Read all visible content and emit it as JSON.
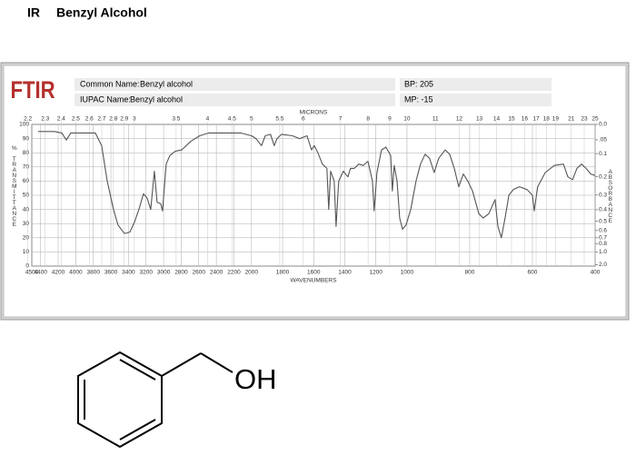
{
  "header": {
    "section": "IR",
    "compound": "Benzyl Alcohol"
  },
  "panel": {
    "logo": "FTIR",
    "common_name_label": "Common Name:",
    "common_name": "Benzyl alcohol",
    "iupac_label": "IUPAC Name:",
    "iupac_name": "Benzyl alcohol",
    "bp": "BP: 205",
    "mp": "MP: -15"
  },
  "structure": {
    "label": "OH"
  },
  "chart_data": {
    "type": "line",
    "x_label": "WAVENUMBERS",
    "x2_label": "MICRONS",
    "y_label": "% TRANSMITTANCE",
    "y2_label": "ABSORBANCE",
    "x": [
      4428,
      4242,
      4159,
      4107,
      4056,
      3880,
      3777,
      3705,
      3642,
      3570,
      3519,
      3446,
      3384,
      3332,
      3281,
      3229,
      3188,
      3147,
      3105,
      3074,
      3033,
      3012,
      2971,
      2930,
      2868,
      2795,
      2692,
      2589,
      2486,
      2330,
      2124,
      2000,
      1971,
      1936,
      1912,
      1877,
      1854,
      1836,
      1807,
      1737,
      1690,
      1643,
      1614,
      1596,
      1573,
      1544,
      1515,
      1503,
      1491,
      1468,
      1456,
      1439,
      1409,
      1380,
      1363,
      1339,
      1310,
      1281,
      1251,
      1222,
      1211,
      1193,
      1164,
      1135,
      1105,
      1094,
      1082,
      1064,
      1047,
      1029,
      1006,
      988,
      971,
      957,
      942,
      928,
      913,
      899,
      878,
      864,
      849,
      835,
      820,
      806,
      791,
      771,
      757,
      739,
      719,
      710,
      699,
      687,
      675,
      661,
      641,
      617,
      600,
      594,
      583,
      559,
      530,
      501,
      487,
      472,
      458,
      443,
      429,
      414,
      400
    ],
    "values": [
      95,
      95,
      94,
      89,
      94,
      94,
      94,
      85,
      60,
      40,
      29,
      23,
      24,
      31,
      40,
      51,
      48,
      40,
      67,
      45,
      44,
      39,
      72,
      78,
      81,
      82,
      88,
      92,
      94,
      94,
      94,
      92,
      90,
      85,
      92,
      93,
      85,
      90,
      93,
      92,
      90,
      92,
      82,
      85,
      80,
      72,
      69,
      40,
      67,
      60,
      28,
      60,
      67,
      63,
      69,
      69,
      72,
      71,
      74,
      60,
      39,
      66,
      82,
      84,
      78,
      53,
      71,
      60,
      34,
      26,
      29,
      40,
      60,
      72,
      79,
      76,
      66,
      76,
      82,
      79,
      69,
      56,
      65,
      60,
      53,
      37,
      34,
      37,
      47,
      28,
      20,
      34,
      50,
      54,
      56,
      54,
      50,
      39,
      56,
      66,
      71,
      72,
      63,
      61,
      69,
      72,
      69,
      65,
      64
    ],
    "color": "#555555",
    "xlim": [
      4500,
      400
    ],
    "xticks": [
      4500,
      4400,
      4200,
      4000,
      3800,
      3600,
      3400,
      3200,
      3000,
      2800,
      2600,
      2400,
      2200,
      2000,
      1800,
      1600,
      1400,
      1200,
      1000,
      800,
      600,
      400
    ],
    "xscale_breaks": [
      2000,
      1000
    ],
    "x2ticks": [
      2.2,
      2.3,
      2.4,
      2.5,
      2.6,
      2.7,
      2.8,
      2.9,
      3,
      3.5,
      4,
      4.5,
      5,
      5.5,
      6,
      7,
      8,
      9,
      10,
      11,
      12,
      13,
      14,
      15,
      16,
      17,
      18,
      19,
      21,
      23,
      25
    ],
    "ylim": [
      0,
      100
    ],
    "yticks": [
      0,
      10,
      20,
      30,
      40,
      50,
      60,
      70,
      80,
      90,
      100
    ],
    "y2scale": "absorbance",
    "y2ticks": [
      {
        "value": 0,
        "label": "0.0"
      },
      {
        "value": 0.05,
        "label": ".05"
      },
      0.1,
      0.2,
      0.3,
      0.4,
      0.5,
      0.6,
      0.7,
      0.8,
      {
        "value": 1,
        "label": "1.0"
      },
      {
        "value": 2,
        "label": "2.0"
      }
    ],
    "grid": true
  }
}
